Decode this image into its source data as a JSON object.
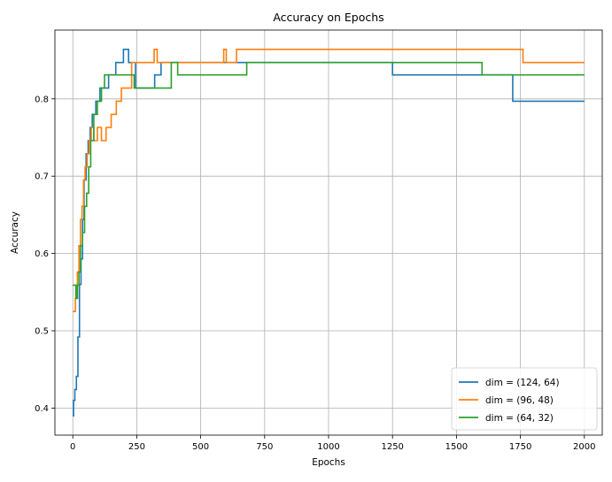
{
  "chart_data": {
    "type": "line",
    "title": "Accuracy on Epochs",
    "xlabel": "Epochs",
    "ylabel": "Accuracy",
    "xlim": [
      -70,
      2070
    ],
    "ylim": [
      0.365,
      0.889
    ],
    "xticks": [
      0,
      250,
      500,
      750,
      1000,
      1250,
      1500,
      1750,
      2000
    ],
    "yticks": [
      0.4,
      0.5,
      0.6,
      0.7,
      0.8
    ],
    "ytick_labels": [
      "0.4",
      "0.5",
      "0.6",
      "0.7",
      "0.8"
    ],
    "grid": true,
    "legend_position": "lower-right",
    "series": [
      {
        "name": "dim = (124, 64)",
        "color": "#1f77b4",
        "x": [
          0,
          3,
          3,
          8,
          8,
          14,
          14,
          20,
          20,
          26,
          26,
          32,
          32,
          38,
          38,
          44,
          44,
          52,
          52,
          60,
          60,
          68,
          68,
          76,
          76,
          90,
          90,
          106,
          106,
          122,
          122,
          140,
          140,
          168,
          168,
          198,
          198,
          218,
          218,
          245,
          245,
          280,
          280,
          320,
          320,
          345,
          345,
          540,
          540,
          1250,
          1250,
          1720,
          1720,
          2000
        ],
        "y": [
          0.39,
          0.39,
          0.41,
          0.41,
          0.424,
          0.424,
          0.441,
          0.441,
          0.492,
          0.492,
          0.56,
          0.56,
          0.593,
          0.593,
          0.644,
          0.644,
          0.695,
          0.695,
          0.729,
          0.729,
          0.746,
          0.746,
          0.763,
          0.763,
          0.78,
          0.78,
          0.797,
          0.797,
          0.814,
          0.814,
          0.814,
          0.814,
          0.831,
          0.831,
          0.847,
          0.847,
          0.864,
          0.864,
          0.847,
          0.847,
          0.814,
          0.814,
          0.814,
          0.814,
          0.831,
          0.831,
          0.847,
          0.847,
          0.847,
          0.847,
          0.831,
          0.831,
          0.797,
          0.797
        ]
      },
      {
        "name": "dim = (96, 48)",
        "color": "#ff7f0e",
        "x": [
          0,
          10,
          10,
          18,
          18,
          24,
          24,
          30,
          30,
          36,
          36,
          42,
          42,
          48,
          48,
          56,
          56,
          64,
          64,
          72,
          72,
          82,
          82,
          96,
          96,
          112,
          112,
          130,
          130,
          150,
          150,
          170,
          170,
          190,
          190,
          230,
          230,
          318,
          318,
          330,
          330,
          530,
          530,
          590,
          590,
          600,
          600,
          640,
          640,
          1760,
          1760,
          2000
        ],
        "y": [
          0.525,
          0.525,
          0.542,
          0.542,
          0.576,
          0.576,
          0.61,
          0.61,
          0.644,
          0.644,
          0.661,
          0.661,
          0.695,
          0.695,
          0.712,
          0.712,
          0.729,
          0.729,
          0.746,
          0.746,
          0.763,
          0.763,
          0.746,
          0.746,
          0.763,
          0.763,
          0.746,
          0.746,
          0.763,
          0.763,
          0.78,
          0.78,
          0.797,
          0.797,
          0.814,
          0.814,
          0.847,
          0.847,
          0.864,
          0.864,
          0.847,
          0.847,
          0.847,
          0.847,
          0.864,
          0.864,
          0.847,
          0.847,
          0.864,
          0.864,
          0.847,
          0.847
        ]
      },
      {
        "name": "dim = (64, 32)",
        "color": "#2ca02c",
        "x": [
          0,
          12,
          12,
          18,
          18,
          24,
          24,
          30,
          30,
          38,
          38,
          46,
          46,
          54,
          54,
          62,
          62,
          70,
          70,
          82,
          82,
          96,
          96,
          112,
          112,
          124,
          124,
          240,
          240,
          385,
          385,
          410,
          410,
          680,
          680,
          1600,
          1600,
          2000
        ],
        "y": [
          0.559,
          0.559,
          0.542,
          0.542,
          0.559,
          0.559,
          0.576,
          0.576,
          0.61,
          0.61,
          0.627,
          0.627,
          0.661,
          0.661,
          0.678,
          0.678,
          0.712,
          0.712,
          0.746,
          0.746,
          0.78,
          0.78,
          0.797,
          0.797,
          0.814,
          0.814,
          0.831,
          0.831,
          0.814,
          0.814,
          0.847,
          0.847,
          0.831,
          0.831,
          0.847,
          0.847,
          0.831,
          0.831
        ]
      }
    ]
  }
}
